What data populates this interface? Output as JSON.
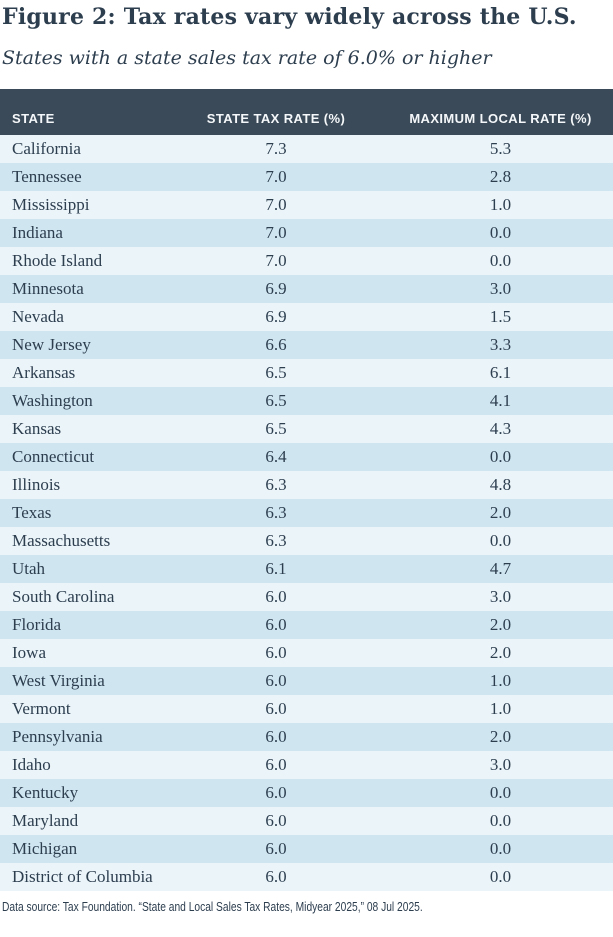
{
  "figure": {
    "title": "Figure 2: Tax rates vary widely across the U.S.",
    "subtitle": "States with a state sales tax rate of 6.0% or higher",
    "source_note": "Data source: Tax Foundation. “State and Local Sales Tax Rates, Midyear 2025,” 08 Jul 2025."
  },
  "colors": {
    "header_bg": "#3b4a58",
    "row_light": "#eaf4f9",
    "row_blue": "#cfe6f1",
    "text": "#2d3e4f",
    "header_text": "#f5f8fa"
  },
  "chart_data": {
    "type": "table",
    "title": "Figure 2: Tax rates vary widely across the U.S.",
    "subtitle": "States with a state sales tax rate of 6.0% or higher",
    "columns": [
      "STATE",
      "STATE TAX RATE (%)",
      "MAXIMUM LOCAL RATE (%)"
    ],
    "rows": [
      {
        "state": "California",
        "state_tax_rate": 7.3,
        "max_local_rate": 5.3
      },
      {
        "state": "Tennessee",
        "state_tax_rate": 7.0,
        "max_local_rate": 2.8
      },
      {
        "state": "Mississippi",
        "state_tax_rate": 7.0,
        "max_local_rate": 1.0
      },
      {
        "state": "Indiana",
        "state_tax_rate": 7.0,
        "max_local_rate": 0.0
      },
      {
        "state": "Rhode Island",
        "state_tax_rate": 7.0,
        "max_local_rate": 0.0
      },
      {
        "state": "Minnesota",
        "state_tax_rate": 6.9,
        "max_local_rate": 3.0
      },
      {
        "state": "Nevada",
        "state_tax_rate": 6.9,
        "max_local_rate": 1.5
      },
      {
        "state": "New Jersey",
        "state_tax_rate": 6.6,
        "max_local_rate": 3.3
      },
      {
        "state": "Arkansas",
        "state_tax_rate": 6.5,
        "max_local_rate": 6.1
      },
      {
        "state": "Washington",
        "state_tax_rate": 6.5,
        "max_local_rate": 4.1
      },
      {
        "state": "Kansas",
        "state_tax_rate": 6.5,
        "max_local_rate": 4.3
      },
      {
        "state": "Connecticut",
        "state_tax_rate": 6.4,
        "max_local_rate": 0.0
      },
      {
        "state": "Illinois",
        "state_tax_rate": 6.3,
        "max_local_rate": 4.8
      },
      {
        "state": "Texas",
        "state_tax_rate": 6.3,
        "max_local_rate": 2.0
      },
      {
        "state": "Massachusetts",
        "state_tax_rate": 6.3,
        "max_local_rate": 0.0
      },
      {
        "state": "Utah",
        "state_tax_rate": 6.1,
        "max_local_rate": 4.7
      },
      {
        "state": "South Carolina",
        "state_tax_rate": 6.0,
        "max_local_rate": 3.0
      },
      {
        "state": "Florida",
        "state_tax_rate": 6.0,
        "max_local_rate": 2.0
      },
      {
        "state": "Iowa",
        "state_tax_rate": 6.0,
        "max_local_rate": 2.0
      },
      {
        "state": "West Virginia",
        "state_tax_rate": 6.0,
        "max_local_rate": 1.0
      },
      {
        "state": "Vermont",
        "state_tax_rate": 6.0,
        "max_local_rate": 1.0
      },
      {
        "state": "Pennsylvania",
        "state_tax_rate": 6.0,
        "max_local_rate": 2.0
      },
      {
        "state": "Idaho",
        "state_tax_rate": 6.0,
        "max_local_rate": 3.0
      },
      {
        "state": "Kentucky",
        "state_tax_rate": 6.0,
        "max_local_rate": 0.0
      },
      {
        "state": "Maryland",
        "state_tax_rate": 6.0,
        "max_local_rate": 0.0
      },
      {
        "state": "Michigan",
        "state_tax_rate": 6.0,
        "max_local_rate": 0.0
      },
      {
        "state": "District of Columbia",
        "state_tax_rate": 6.0,
        "max_local_rate": 0.0
      }
    ]
  }
}
